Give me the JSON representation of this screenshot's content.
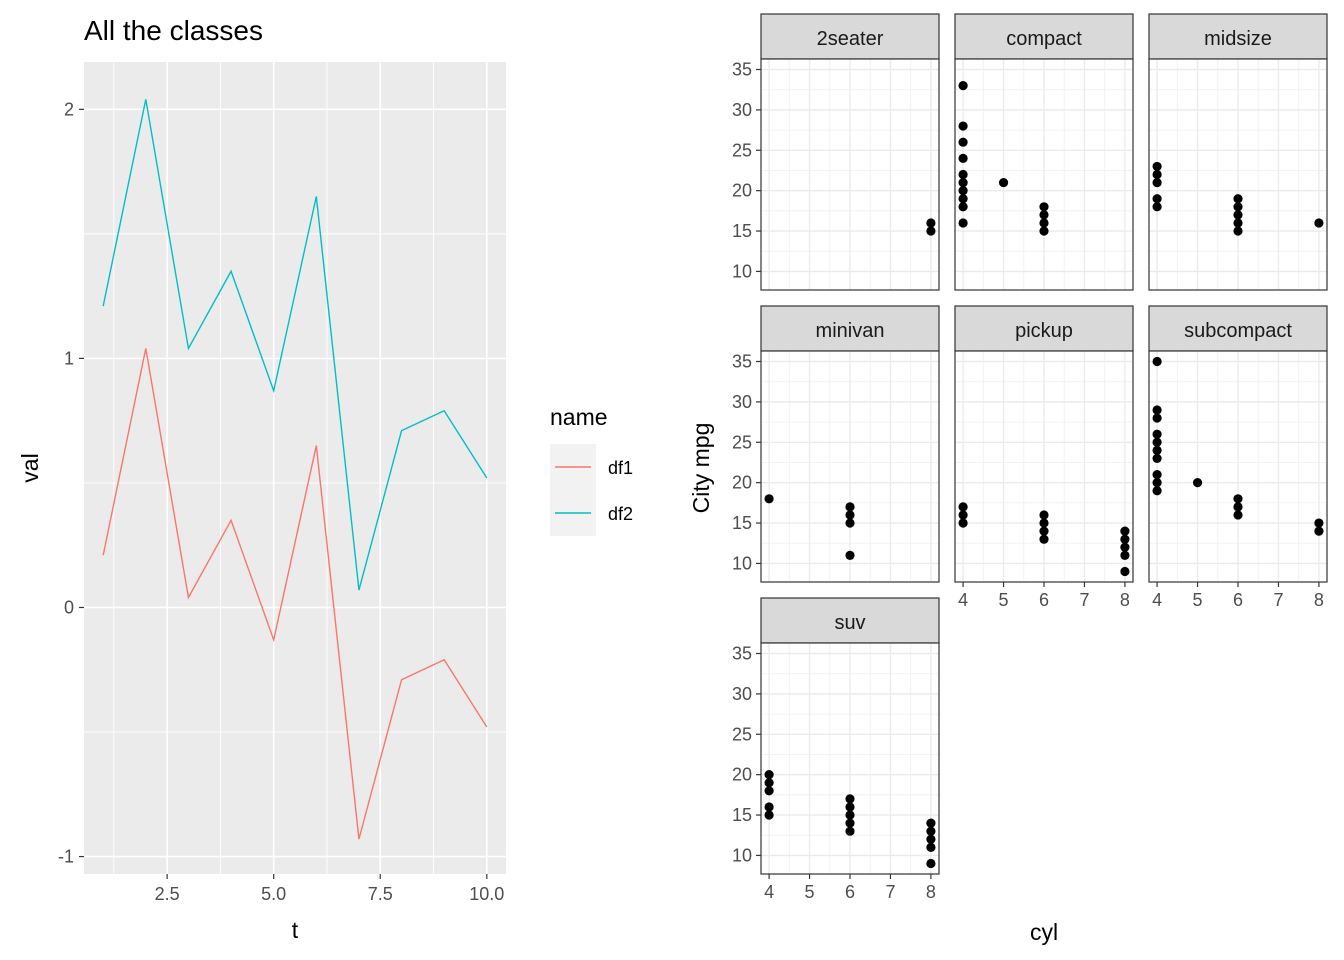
{
  "chart_data": [
    {
      "type": "line",
      "title": "All the classes",
      "xlabel": "t",
      "ylabel": "val",
      "xlim": [
        0.55,
        10.45
      ],
      "ylim": [
        -1.07,
        2.19
      ],
      "x_ticks": [
        2.5,
        5.0,
        7.5,
        10.0
      ],
      "x_tick_labels": [
        "2.5",
        "5.0",
        "7.5",
        "10.0"
      ],
      "y_ticks": [
        -1,
        0,
        1,
        2
      ],
      "y_tick_labels": [
        "-1",
        "0",
        "1",
        "2"
      ],
      "x": [
        1,
        2,
        3,
        4,
        5,
        6,
        7,
        8,
        9,
        10
      ],
      "series": [
        {
          "name": "df1",
          "color": "#F8766D",
          "values": [
            0.21,
            1.04,
            0.04,
            0.35,
            -0.13,
            0.65,
            -0.93,
            -0.29,
            -0.21,
            -0.48
          ]
        },
        {
          "name": "df2",
          "color": "#00BFC4",
          "values": [
            1.21,
            2.04,
            1.04,
            1.35,
            0.87,
            1.65,
            0.07,
            0.71,
            0.79,
            0.52
          ]
        }
      ],
      "legend": {
        "title": "name",
        "placement": "right"
      },
      "grid": true,
      "background": "#EBEBEB"
    },
    {
      "type": "scatter",
      "xlabel": "cyl",
      "ylabel": "City mpg",
      "xlim": [
        3.8,
        8.2
      ],
      "ylim": [
        7.7,
        36.3
      ],
      "x_ticks": [
        4,
        5,
        6,
        7,
        8
      ],
      "x_tick_labels": [
        "4",
        "5",
        "6",
        "7",
        "8"
      ],
      "y_ticks": [
        10,
        15,
        20,
        25,
        30,
        35
      ],
      "y_tick_labels": [
        "10",
        "15",
        "20",
        "25",
        "30",
        "35"
      ],
      "grid": true,
      "panels": [
        {
          "name": "2seater",
          "points": [
            [
              8,
              15
            ],
            [
              8,
              16
            ]
          ]
        },
        {
          "name": "compact",
          "points": [
            [
              4,
              16
            ],
            [
              4,
              18
            ],
            [
              4,
              19
            ],
            [
              4,
              20
            ],
            [
              4,
              21
            ],
            [
              4,
              22
            ],
            [
              4,
              24
            ],
            [
              4,
              26
            ],
            [
              4,
              28
            ],
            [
              4,
              33
            ],
            [
              5,
              21
            ],
            [
              6,
              15
            ],
            [
              6,
              16
            ],
            [
              6,
              17
            ],
            [
              6,
              18
            ]
          ]
        },
        {
          "name": "midsize",
          "points": [
            [
              4,
              18
            ],
            [
              4,
              19
            ],
            [
              4,
              21
            ],
            [
              4,
              22
            ],
            [
              4,
              23
            ],
            [
              6,
              15
            ],
            [
              6,
              16
            ],
            [
              6,
              17
            ],
            [
              6,
              18
            ],
            [
              6,
              19
            ],
            [
              8,
              16
            ]
          ]
        },
        {
          "name": "minivan",
          "points": [
            [
              4,
              18
            ],
            [
              6,
              11
            ],
            [
              6,
              15
            ],
            [
              6,
              16
            ],
            [
              6,
              17
            ]
          ]
        },
        {
          "name": "pickup",
          "points": [
            [
              4,
              15
            ],
            [
              4,
              16
            ],
            [
              4,
              17
            ],
            [
              6,
              13
            ],
            [
              6,
              14
            ],
            [
              6,
              15
            ],
            [
              6,
              16
            ],
            [
              8,
              9
            ],
            [
              8,
              11
            ],
            [
              8,
              12
            ],
            [
              8,
              13
            ],
            [
              8,
              14
            ]
          ]
        },
        {
          "name": "subcompact",
          "points": [
            [
              4,
              19
            ],
            [
              4,
              20
            ],
            [
              4,
              21
            ],
            [
              4,
              23
            ],
            [
              4,
              24
            ],
            [
              4,
              25
            ],
            [
              4,
              26
            ],
            [
              4,
              28
            ],
            [
              4,
              29
            ],
            [
              4,
              35
            ],
            [
              5,
              20
            ],
            [
              6,
              16
            ],
            [
              6,
              17
            ],
            [
              6,
              18
            ],
            [
              8,
              14
            ],
            [
              8,
              15
            ]
          ]
        },
        {
          "name": "suv",
          "points": [
            [
              4,
              15
            ],
            [
              4,
              16
            ],
            [
              4,
              18
            ],
            [
              4,
              19
            ],
            [
              4,
              20
            ],
            [
              6,
              13
            ],
            [
              6,
              14
            ],
            [
              6,
              15
            ],
            [
              6,
              16
            ],
            [
              6,
              17
            ],
            [
              8,
              9
            ],
            [
              8,
              11
            ],
            [
              8,
              12
            ],
            [
              8,
              13
            ],
            [
              8,
              14
            ]
          ]
        }
      ]
    }
  ]
}
